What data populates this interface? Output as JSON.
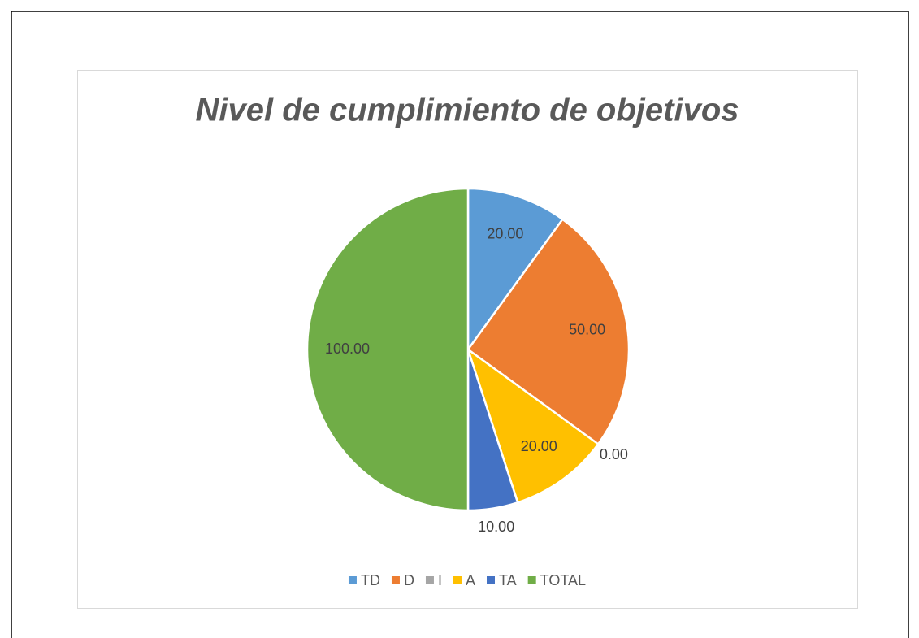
{
  "chart_data": {
    "type": "pie",
    "title": "Nivel de cumplimiento de objetivos",
    "categories": [
      "TD",
      "D",
      "I",
      "A",
      "TA",
      "TOTAL"
    ],
    "values": [
      20,
      50,
      0,
      20,
      10,
      100
    ],
    "value_labels": [
      "20.00",
      "50.00",
      "0.00",
      "20.00",
      "10.00",
      "100.00"
    ],
    "colors": [
      "#5b9bd5",
      "#ed7d31",
      "#a5a5a5",
      "#ffc000",
      "#4472c4",
      "#70ad47"
    ],
    "legend": "bottom"
  }
}
